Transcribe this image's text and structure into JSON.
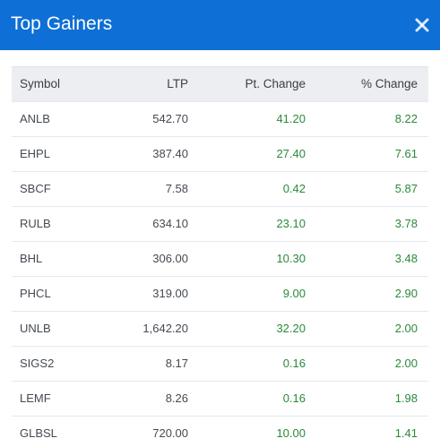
{
  "modal": {
    "title": "Top Gainers",
    "close_icon": "close-icon"
  },
  "colors": {
    "header_bg": "#0e6fd6",
    "positive": "#2a8a3a",
    "table_header_bg": "#eceef1"
  },
  "table": {
    "headers": {
      "symbol": "Symbol",
      "ltp": "LTP",
      "pt_change": "Pt. Change",
      "pct_change": "% Change"
    },
    "rows": [
      {
        "symbol": "ANLB",
        "ltp": "542.70",
        "pt_change": "41.20",
        "pct_change": "8.22"
      },
      {
        "symbol": "EHPL",
        "ltp": "387.40",
        "pt_change": "27.40",
        "pct_change": "7.61"
      },
      {
        "symbol": "SBCF",
        "ltp": "7.58",
        "pt_change": "0.42",
        "pct_change": "5.87"
      },
      {
        "symbol": "RULB",
        "ltp": "634.10",
        "pt_change": "23.10",
        "pct_change": "3.78"
      },
      {
        "symbol": "BHL",
        "ltp": "306.00",
        "pt_change": "10.30",
        "pct_change": "3.48"
      },
      {
        "symbol": "PHCL",
        "ltp": "319.00",
        "pt_change": "9.00",
        "pct_change": "2.90"
      },
      {
        "symbol": "UNLB",
        "ltp": "1,642.20",
        "pt_change": "32.20",
        "pct_change": "2.00"
      },
      {
        "symbol": "SIGS2",
        "ltp": "8.17",
        "pt_change": "0.16",
        "pct_change": "2.00"
      },
      {
        "symbol": "LEMF",
        "ltp": "8.26",
        "pt_change": "0.16",
        "pct_change": "1.98"
      },
      {
        "symbol": "GLBSL",
        "ltp": "720.00",
        "pt_change": "10.00",
        "pct_change": "1.41"
      }
    ]
  }
}
